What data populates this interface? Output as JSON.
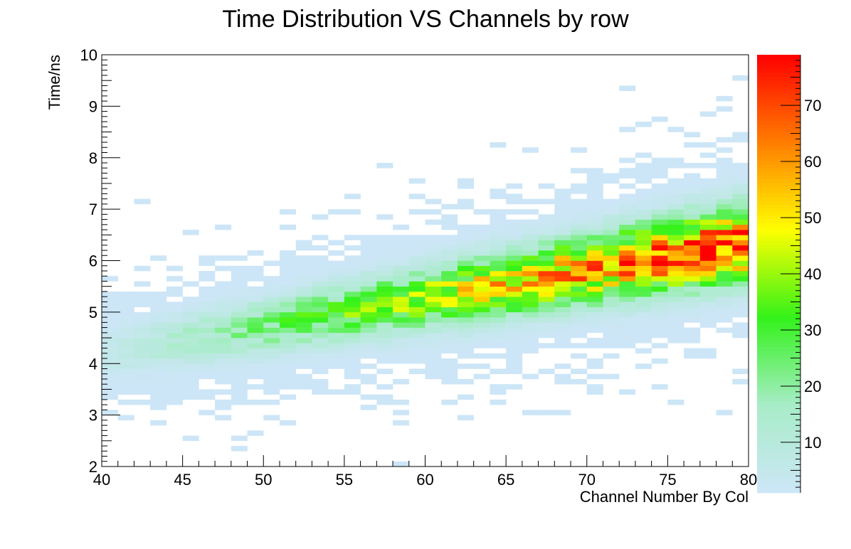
{
  "chart_data": {
    "type": "heatmap",
    "title": "Time Distribution VS Channels by row",
    "xlabel": "Channel Number By Col",
    "ylabel": "Time/ns",
    "xlim": [
      40,
      80
    ],
    "ylim": [
      2,
      10
    ],
    "x_bin_width": 1,
    "y_bin_width": 0.1,
    "x_ticks": [
      40,
      45,
      50,
      55,
      60,
      65,
      70,
      75,
      80
    ],
    "y_ticks": [
      2,
      3,
      4,
      5,
      6,
      7,
      8,
      9,
      10
    ],
    "colorbar": {
      "min": 1,
      "max": 79,
      "ticks": [
        10,
        20,
        30,
        40,
        50,
        60,
        70
      ],
      "palette": [
        "#cde6f7",
        "#a8ecc8",
        "#33f21a",
        "#ffff00",
        "#ff7d00",
        "#ff0000"
      ]
    },
    "density_model": {
      "ridge_center_at_40": 4.2,
      "ridge_slope_per_channel": 0.055,
      "spread_at_40": 0.3,
      "spread_slope_per_channel": 0.0045,
      "peak_count_at_40": 6,
      "peak_count_slope_per_channel": 1.8,
      "description": "counts per bin approximate a ridge rising from ~4.2 ns at channel 40 to ~6.4 ns at channel 80"
    },
    "grid": false,
    "legend": "colorbar-right"
  }
}
